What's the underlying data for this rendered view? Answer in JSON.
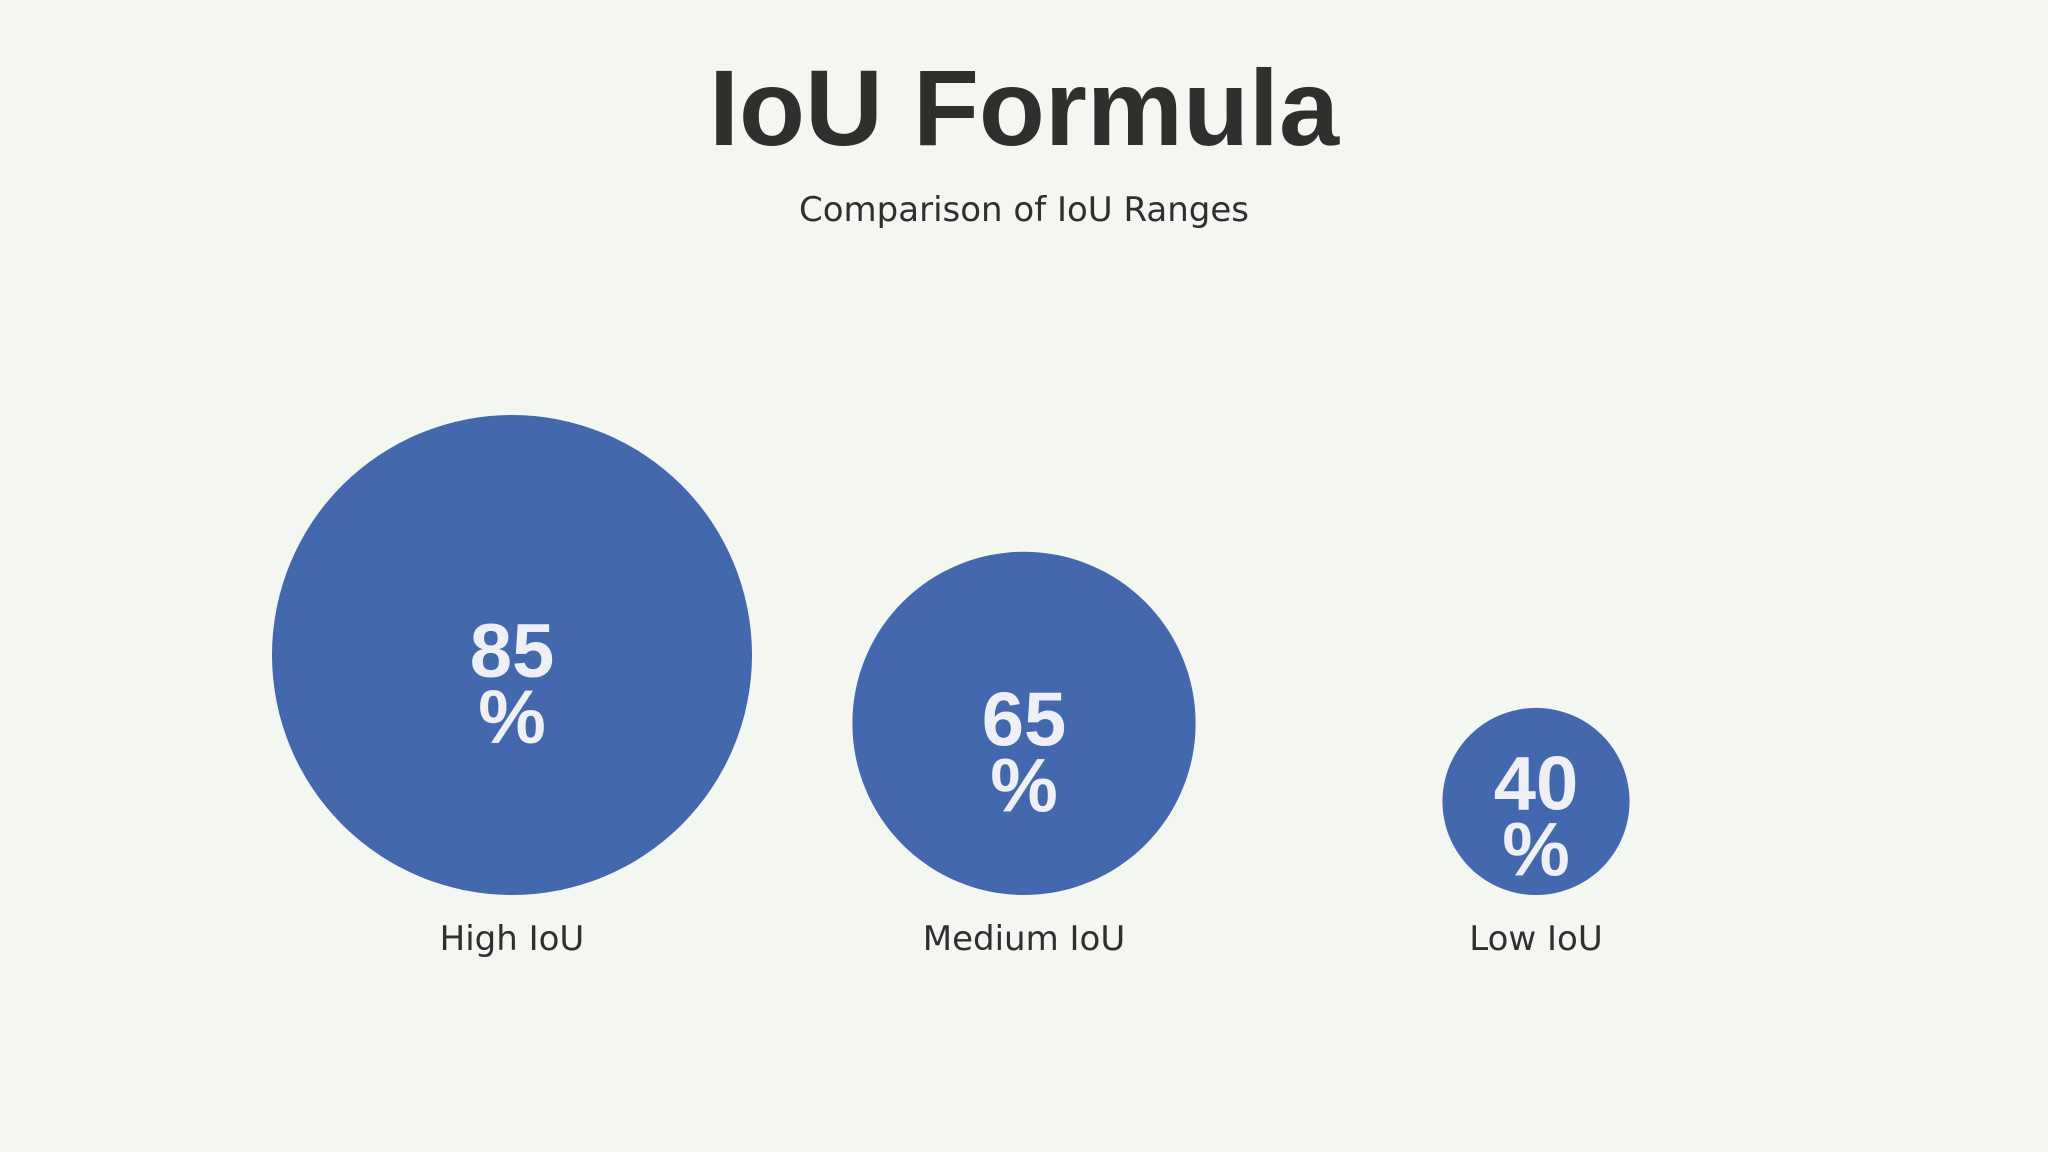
{
  "chart_data": {
    "type": "bubble",
    "title": "IoU Formula",
    "subtitle": "Comparison of IoU Ranges",
    "unit": "%",
    "categories": [
      "High IoU",
      "Medium IoU",
      "Low IoU"
    ],
    "values": [
      85,
      65,
      40
    ],
    "colors": {
      "circle": "#4468ad",
      "value_text": "#eef0f6",
      "label_text": "#2e302d",
      "background": "#f4f6f2"
    }
  }
}
